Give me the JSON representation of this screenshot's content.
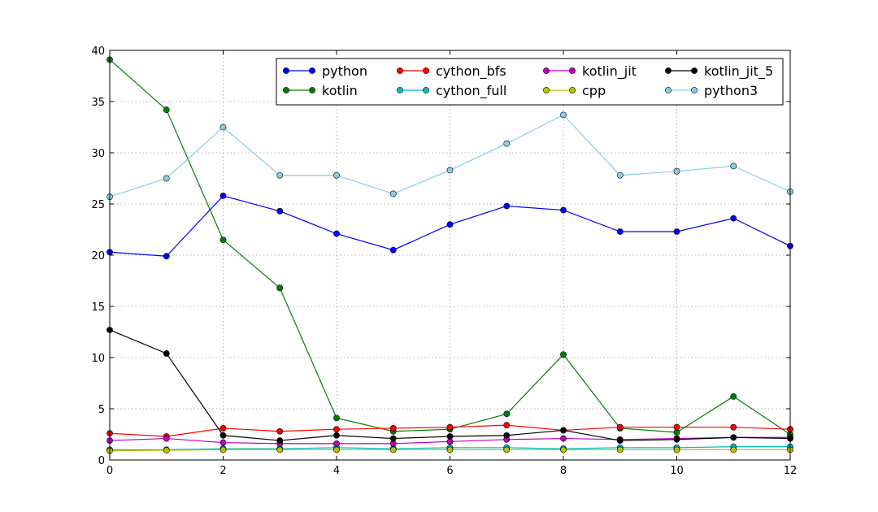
{
  "chart_data": {
    "type": "line",
    "title": "",
    "xlabel": "",
    "ylabel": "",
    "xlim": [
      0,
      12
    ],
    "ylim": [
      0,
      40
    ],
    "xticks": [
      0,
      2,
      4,
      6,
      8,
      10,
      12
    ],
    "yticks": [
      0,
      5,
      10,
      15,
      20,
      25,
      30,
      35,
      40
    ],
    "grid": true,
    "legend_position": "top-right",
    "legend_columns": 4,
    "x": [
      0,
      1,
      2,
      3,
      4,
      5,
      6,
      7,
      8,
      9,
      10,
      11,
      12
    ],
    "series": [
      {
        "name": "python",
        "color": "#0000ff",
        "values": [
          20.3,
          19.9,
          25.8,
          24.3,
          22.1,
          20.5,
          23.0,
          24.8,
          24.4,
          22.3,
          22.3,
          23.6,
          20.9
        ]
      },
      {
        "name": "kotlin",
        "color": "#008000",
        "values": [
          39.1,
          34.2,
          21.5,
          16.8,
          4.1,
          2.8,
          3.0,
          4.5,
          10.3,
          3.1,
          2.7,
          6.2,
          2.5
        ]
      },
      {
        "name": "cython_bfs",
        "color": "#ff0000",
        "values": [
          2.6,
          2.3,
          3.1,
          2.8,
          3.0,
          3.1,
          3.2,
          3.4,
          2.9,
          3.2,
          3.2,
          3.2,
          3.0
        ]
      },
      {
        "name": "cython_full",
        "color": "#00bfbf",
        "values": [
          1.0,
          1.0,
          1.1,
          1.1,
          1.2,
          1.1,
          1.2,
          1.2,
          1.1,
          1.2,
          1.2,
          1.3,
          1.3
        ]
      },
      {
        "name": "kotlin_jit",
        "color": "#bf00bf",
        "values": [
          1.9,
          2.1,
          1.7,
          1.6,
          1.6,
          1.6,
          1.8,
          2.0,
          2.1,
          2.0,
          2.1,
          2.2,
          2.2
        ]
      },
      {
        "name": "cpp",
        "color": "#bfbf00",
        "values": [
          0.9,
          0.95,
          1.0,
          1.0,
          1.0,
          1.0,
          1.0,
          1.0,
          1.0,
          1.0,
          1.0,
          1.0,
          1.0
        ]
      },
      {
        "name": "kotlin_jit_5",
        "color": "#000000",
        "values": [
          12.7,
          10.4,
          2.4,
          1.9,
          2.4,
          2.1,
          2.3,
          2.4,
          2.9,
          1.9,
          2.0,
          2.2,
          2.1
        ]
      },
      {
        "name": "python3",
        "color": "#87ceeb",
        "values": [
          25.7,
          27.5,
          32.5,
          27.8,
          27.8,
          26.0,
          28.3,
          30.9,
          33.7,
          27.8,
          28.2,
          28.7,
          26.2
        ]
      }
    ]
  }
}
